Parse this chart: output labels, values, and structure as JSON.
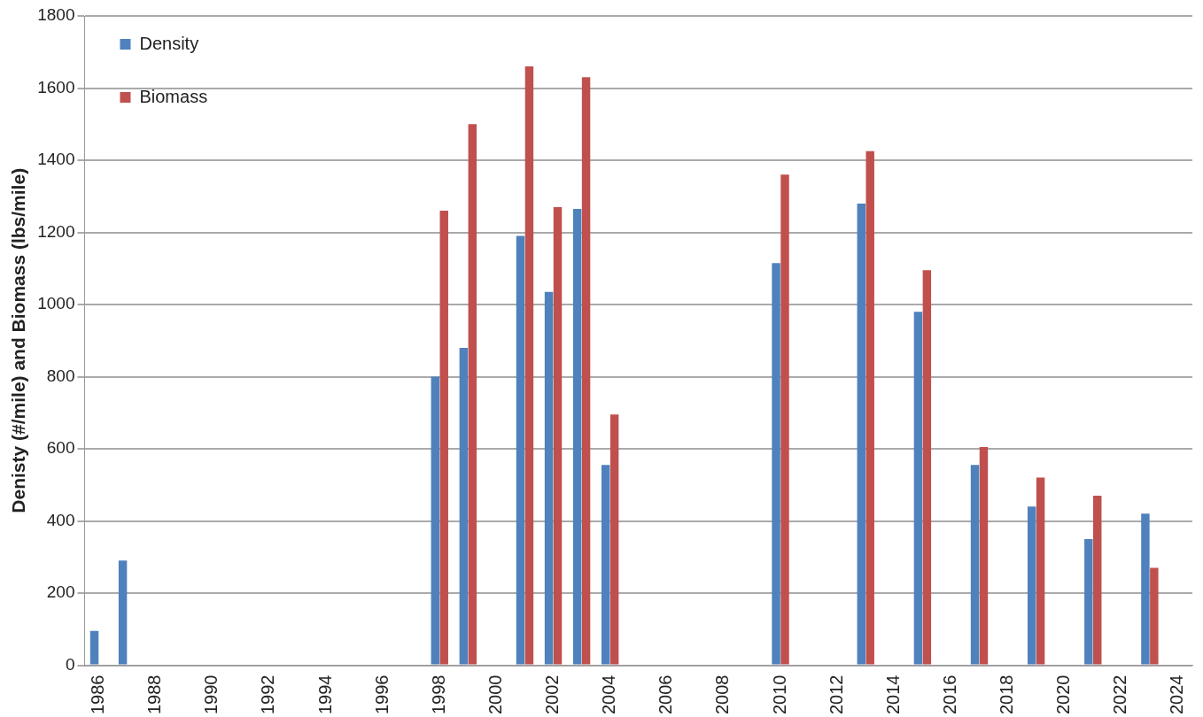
{
  "chart_data": {
    "type": "bar",
    "ylabel": "Denisty (#/mile) and Biomass (lbs/mile)",
    "categories": [
      "1986",
      null,
      "1988",
      null,
      "1990",
      null,
      "1992",
      null,
      "1994",
      null,
      "1996",
      null,
      "1998",
      null,
      "2000",
      null,
      "2002",
      null,
      "2004",
      null,
      "2006",
      null,
      "2008",
      null,
      "2010",
      null,
      "2012",
      null,
      "2014",
      null,
      "2016",
      null,
      "2018",
      null,
      "2020",
      null,
      "2022",
      null,
      "2024"
    ],
    "series": [
      {
        "name": "Density",
        "color": "#4f81bd",
        "values": [
          95,
          290,
          null,
          null,
          null,
          null,
          null,
          null,
          null,
          null,
          null,
          null,
          800,
          880,
          null,
          1190,
          1035,
          1265,
          555,
          null,
          null,
          null,
          null,
          null,
          1115,
          null,
          null,
          1280,
          null,
          980,
          null,
          555,
          null,
          440,
          null,
          350,
          null,
          420,
          null
        ]
      },
      {
        "name": "Biomass",
        "color": "#c0504d",
        "values": [
          null,
          null,
          null,
          null,
          null,
          null,
          null,
          null,
          null,
          null,
          null,
          null,
          1260,
          1500,
          null,
          1660,
          1270,
          1630,
          695,
          null,
          null,
          null,
          null,
          null,
          1360,
          null,
          null,
          1425,
          null,
          1095,
          null,
          605,
          null,
          520,
          null,
          470,
          null,
          270,
          null
        ]
      }
    ],
    "ylim": [
      0,
      1800
    ],
    "yticks": [
      0,
      200,
      400,
      600,
      800,
      1000,
      1200,
      1400,
      1600,
      1800
    ],
    "grid": "y",
    "legend": "top left"
  }
}
